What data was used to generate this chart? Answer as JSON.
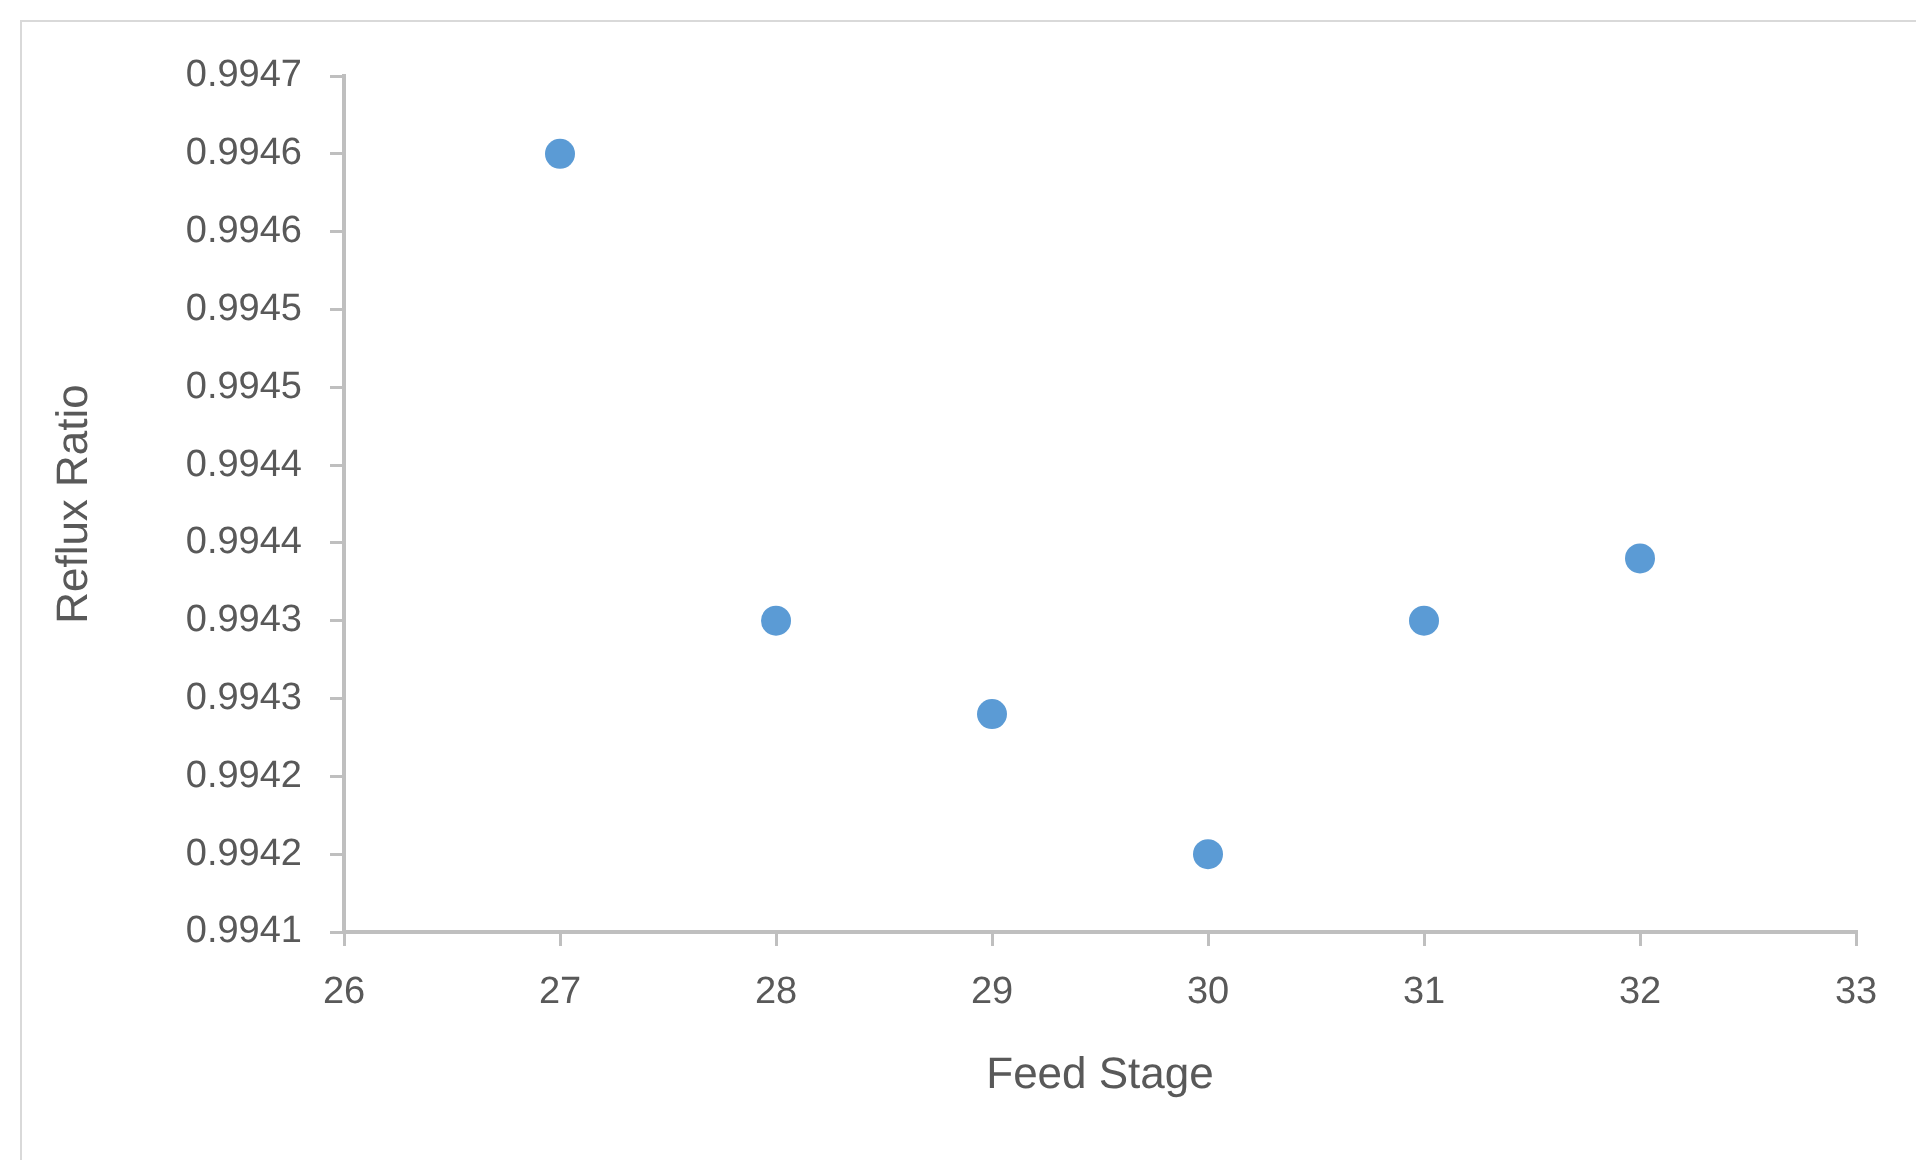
{
  "chart_data": {
    "type": "scatter",
    "xlabel": "Feed Stage",
    "ylabel": "Reflux Ratio",
    "x": [
      27,
      28,
      29,
      30,
      31,
      32
    ],
    "series": [
      {
        "color": "#5b9bd5",
        "values": [
          0.9946,
          0.9943,
          0.99424,
          0.99415,
          0.9943,
          0.99434
        ]
      }
    ],
    "xlim": [
      26,
      33
    ],
    "xticks": [
      26,
      27,
      28,
      29,
      30,
      31,
      32,
      33
    ],
    "ylim": [
      0.9941,
      0.99465
    ],
    "yticks": [
      0.9941,
      {
        "value": 0.99415,
        "label": "0.9942"
      },
      0.9942,
      {
        "value": 0.99425,
        "label": "0.9943"
      },
      0.9943,
      {
        "value": 0.99435,
        "label": "0.9944"
      },
      0.9944,
      {
        "value": 0.99445,
        "label": "0.9945"
      },
      0.9945,
      {
        "value": 0.99455,
        "label": "0.9946"
      },
      0.9946,
      {
        "value": 0.99465,
        "label": "0.9947"
      }
    ],
    "marker": "circle"
  }
}
